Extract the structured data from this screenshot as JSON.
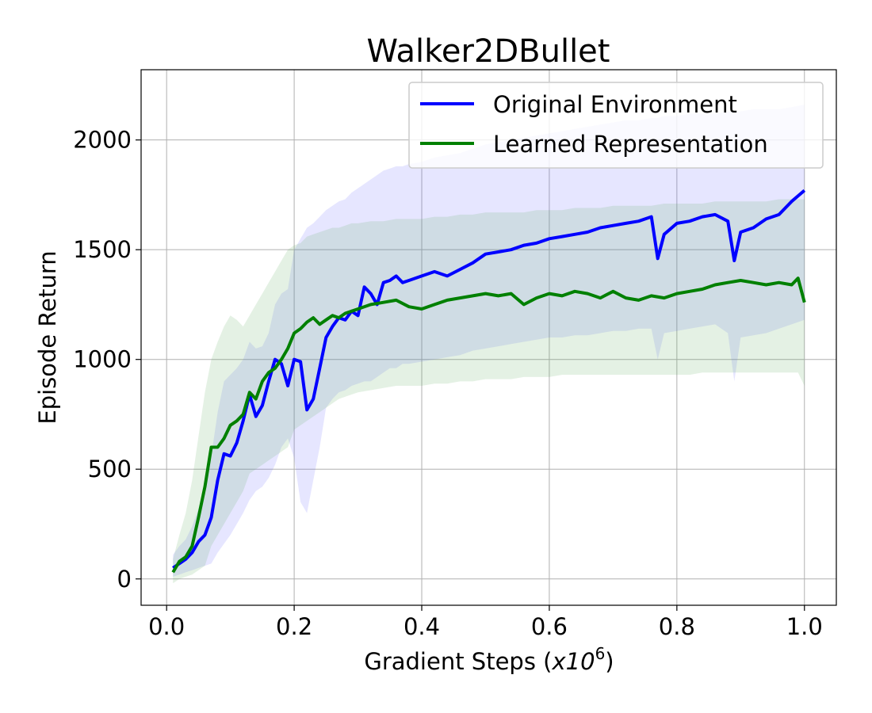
{
  "chart_data": {
    "type": "line",
    "title": "Walker2DBullet",
    "xlabel_prefix": "Gradient Steps (",
    "xlabel_var": "x10",
    "xlabel_exp": "6",
    "xlabel_suffix": ")",
    "ylabel": "Episode Return",
    "xlim": [
      -0.04,
      1.05
    ],
    "ylim": [
      -120,
      2320
    ],
    "x_ticks": [
      "0.0",
      "0.2",
      "0.4",
      "0.6",
      "0.8",
      "1.0"
    ],
    "y_ticks": [
      "0",
      "500",
      "1000",
      "1500",
      "2000"
    ],
    "grid": true,
    "legend_position": "top-right",
    "series": [
      {
        "name": "Original Environment",
        "color": "#0000ff",
        "band_color": "#6666ff",
        "x": [
          0.01,
          0.02,
          0.03,
          0.04,
          0.05,
          0.06,
          0.07,
          0.08,
          0.09,
          0.1,
          0.11,
          0.12,
          0.13,
          0.14,
          0.15,
          0.16,
          0.17,
          0.18,
          0.19,
          0.2,
          0.21,
          0.22,
          0.23,
          0.24,
          0.25,
          0.26,
          0.27,
          0.28,
          0.29,
          0.3,
          0.31,
          0.32,
          0.33,
          0.34,
          0.35,
          0.36,
          0.37,
          0.38,
          0.4,
          0.42,
          0.44,
          0.46,
          0.48,
          0.5,
          0.52,
          0.54,
          0.56,
          0.58,
          0.6,
          0.62,
          0.64,
          0.66,
          0.68,
          0.7,
          0.72,
          0.74,
          0.76,
          0.77,
          0.78,
          0.8,
          0.82,
          0.84,
          0.86,
          0.88,
          0.89,
          0.9,
          0.92,
          0.94,
          0.96,
          0.98,
          1.0
        ],
        "y": [
          50,
          70,
          90,
          120,
          170,
          200,
          280,
          450,
          570,
          560,
          620,
          720,
          840,
          740,
          790,
          900,
          1000,
          980,
          880,
          1000,
          990,
          770,
          820,
          960,
          1100,
          1150,
          1190,
          1180,
          1220,
          1200,
          1330,
          1300,
          1250,
          1350,
          1360,
          1380,
          1350,
          1360,
          1380,
          1400,
          1380,
          1410,
          1440,
          1480,
          1490,
          1500,
          1520,
          1530,
          1550,
          1560,
          1570,
          1580,
          1600,
          1610,
          1620,
          1630,
          1650,
          1460,
          1570,
          1620,
          1630,
          1650,
          1660,
          1630,
          1450,
          1580,
          1600,
          1640,
          1660,
          1720,
          1770
        ],
        "upper": [
          110,
          150,
          180,
          240,
          320,
          400,
          560,
          760,
          900,
          930,
          960,
          1000,
          1080,
          1050,
          1060,
          1120,
          1250,
          1300,
          1320,
          1500,
          1550,
          1600,
          1620,
          1650,
          1680,
          1700,
          1720,
          1730,
          1760,
          1780,
          1800,
          1820,
          1840,
          1860,
          1870,
          1880,
          1880,
          1890,
          1900,
          1920,
          1930,
          1940,
          1960,
          1980,
          1990,
          2000,
          2010,
          2020,
          2030,
          2040,
          2050,
          2060,
          2070,
          2080,
          2090,
          2090,
          2100,
          2100,
          2110,
          2110,
          2120,
          2120,
          2120,
          2130,
          2130,
          2130,
          2140,
          2140,
          2140,
          2150,
          2160
        ],
        "lower": [
          10,
          20,
          30,
          40,
          50,
          60,
          70,
          120,
          160,
          200,
          250,
          300,
          360,
          400,
          420,
          460,
          520,
          600,
          640,
          550,
          350,
          300,
          450,
          600,
          780,
          820,
          850,
          860,
          880,
          890,
          900,
          900,
          920,
          940,
          960,
          960,
          980,
          980,
          990,
          1000,
          1010,
          1020,
          1040,
          1050,
          1060,
          1070,
          1080,
          1090,
          1100,
          1100,
          1110,
          1110,
          1120,
          1130,
          1130,
          1140,
          1140,
          1000,
          1120,
          1130,
          1140,
          1150,
          1160,
          1120,
          900,
          1100,
          1110,
          1120,
          1140,
          1160,
          1180
        ]
      },
      {
        "name": "Learned Representation",
        "color": "#008000",
        "band_color": "#55aa55",
        "x": [
          0.01,
          0.02,
          0.03,
          0.04,
          0.05,
          0.06,
          0.07,
          0.08,
          0.09,
          0.1,
          0.11,
          0.12,
          0.13,
          0.14,
          0.15,
          0.16,
          0.17,
          0.18,
          0.19,
          0.2,
          0.21,
          0.22,
          0.23,
          0.24,
          0.25,
          0.26,
          0.27,
          0.28,
          0.29,
          0.3,
          0.32,
          0.34,
          0.36,
          0.38,
          0.4,
          0.42,
          0.44,
          0.46,
          0.48,
          0.5,
          0.52,
          0.54,
          0.56,
          0.58,
          0.6,
          0.62,
          0.64,
          0.66,
          0.68,
          0.7,
          0.72,
          0.74,
          0.76,
          0.78,
          0.8,
          0.82,
          0.84,
          0.86,
          0.88,
          0.9,
          0.92,
          0.94,
          0.96,
          0.98,
          0.99,
          1.0
        ],
        "y": [
          30,
          80,
          100,
          150,
          280,
          420,
          600,
          600,
          640,
          700,
          720,
          750,
          850,
          820,
          900,
          940,
          960,
          1000,
          1050,
          1120,
          1140,
          1170,
          1190,
          1160,
          1180,
          1200,
          1190,
          1210,
          1220,
          1230,
          1250,
          1260,
          1270,
          1240,
          1230,
          1250,
          1270,
          1280,
          1290,
          1300,
          1290,
          1300,
          1250,
          1280,
          1300,
          1290,
          1310,
          1300,
          1280,
          1310,
          1280,
          1270,
          1290,
          1280,
          1300,
          1310,
          1320,
          1340,
          1350,
          1360,
          1350,
          1340,
          1350,
          1340,
          1370,
          1260
        ],
        "upper": [
          90,
          200,
          300,
          450,
          650,
          850,
          1000,
          1080,
          1150,
          1200,
          1180,
          1150,
          1200,
          1250,
          1300,
          1350,
          1400,
          1450,
          1500,
          1520,
          1530,
          1560,
          1570,
          1580,
          1590,
          1600,
          1600,
          1610,
          1620,
          1620,
          1630,
          1630,
          1640,
          1640,
          1640,
          1650,
          1650,
          1660,
          1660,
          1670,
          1670,
          1670,
          1670,
          1680,
          1680,
          1680,
          1690,
          1690,
          1690,
          1700,
          1700,
          1700,
          1700,
          1710,
          1710,
          1710,
          1710,
          1720,
          1720,
          1720,
          1720,
          1720,
          1730,
          1730,
          1730,
          1730
        ],
        "lower": [
          -20,
          0,
          10,
          20,
          40,
          60,
          150,
          200,
          250,
          300,
          350,
          400,
          480,
          500,
          520,
          540,
          560,
          580,
          600,
          680,
          700,
          720,
          740,
          760,
          780,
          800,
          820,
          830,
          840,
          850,
          860,
          870,
          880,
          880,
          880,
          890,
          890,
          900,
          900,
          910,
          910,
          910,
          920,
          920,
          920,
          930,
          930,
          930,
          930,
          930,
          930,
          930,
          930,
          930,
          930,
          930,
          940,
          940,
          940,
          940,
          940,
          940,
          940,
          940,
          940,
          880
        ]
      }
    ]
  }
}
